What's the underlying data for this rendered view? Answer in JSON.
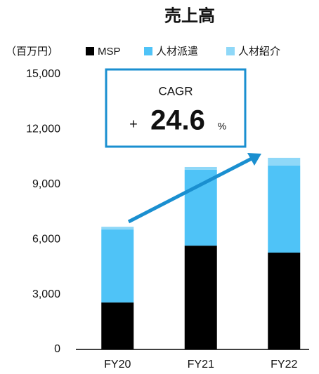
{
  "chart_data": {
    "type": "stacked_bar",
    "title": "売上高",
    "unit_label": "（百万円）",
    "categories": [
      "FY20",
      "FY21",
      "FY22"
    ],
    "series": [
      {
        "name": "MSP",
        "color": "#000000",
        "values": [
          2560,
          5660,
          5280
        ]
      },
      {
        "name": "人材派遣",
        "color": "#4fc3f7",
        "values": [
          3980,
          4140,
          4750
        ]
      },
      {
        "name": "人材紹介",
        "color": "#8fd8f8",
        "values": [
          150,
          150,
          420
        ]
      }
    ],
    "ylim": [
      0,
      15000
    ],
    "yticks": [
      0,
      {
        "value": 3000,
        "label": "3,000"
      },
      {
        "value": 6000,
        "label": "6,000"
      },
      {
        "value": 9000,
        "label": "9,000"
      },
      {
        "value": 12000,
        "label": "12,000"
      },
      {
        "value": 15000,
        "label": "15,000"
      }
    ],
    "annotation": {
      "title": "CAGR",
      "prefix": "+",
      "value": "24.6",
      "suffix": "%"
    }
  }
}
